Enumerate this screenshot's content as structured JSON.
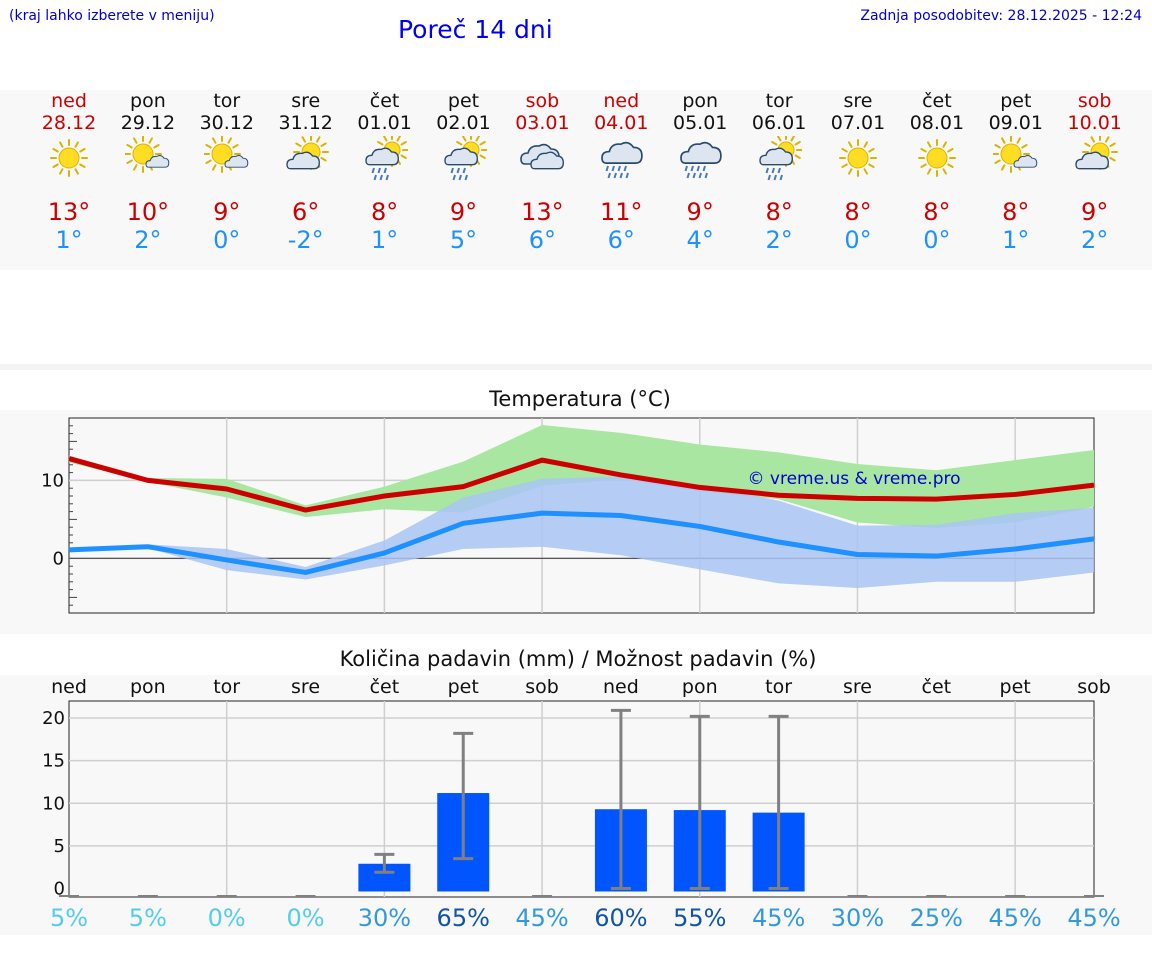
{
  "header": {
    "hint": "(kraj lahko izberete v meniju)",
    "title": "Poreč 14 dni",
    "updated": "Zadnja posodobitev: 28.12.2025 - 12:24"
  },
  "colors": {
    "tmax": "#cc0000",
    "tmin": "#1e90ff",
    "bar": "#0055ff",
    "green_band": "#a8e6a1",
    "blue_band": "#a9c4f5"
  },
  "forecast": [
    {
      "day": "ned",
      "date": "28.12",
      "icon": "sun-icon",
      "max": "13°",
      "min": "1°",
      "weekend": true
    },
    {
      "day": "pon",
      "date": "29.12",
      "icon": "sun-cloud-icon",
      "max": "10°",
      "min": "2°",
      "weekend": false
    },
    {
      "day": "tor",
      "date": "30.12",
      "icon": "sun-cloud-icon",
      "max": "9°",
      "min": "0°",
      "weekend": false
    },
    {
      "day": "sre",
      "date": "31.12",
      "icon": "cloud-sun-icon",
      "max": "6°",
      "min": "-2°",
      "weekend": false
    },
    {
      "day": "čet",
      "date": "01.01",
      "icon": "sun-cloud-rain-icon",
      "max": "8°",
      "min": "1°",
      "weekend": false
    },
    {
      "day": "pet",
      "date": "02.01",
      "icon": "sun-cloud-rain-icon",
      "max": "9°",
      "min": "5°",
      "weekend": false
    },
    {
      "day": "sob",
      "date": "03.01",
      "icon": "cloud-icon",
      "max": "13°",
      "min": "6°",
      "weekend": true
    },
    {
      "day": "ned",
      "date": "04.01",
      "icon": "cloud-rain-icon",
      "max": "11°",
      "min": "6°",
      "weekend": true
    },
    {
      "day": "pon",
      "date": "05.01",
      "icon": "cloud-rain-icon",
      "max": "9°",
      "min": "4°",
      "weekend": false
    },
    {
      "day": "tor",
      "date": "06.01",
      "icon": "sun-cloud-rain-icon",
      "max": "8°",
      "min": "2°",
      "weekend": false
    },
    {
      "day": "sre",
      "date": "07.01",
      "icon": "sun-icon",
      "max": "8°",
      "min": "0°",
      "weekend": false
    },
    {
      "day": "čet",
      "date": "08.01",
      "icon": "sun-icon",
      "max": "8°",
      "min": "0°",
      "weekend": false
    },
    {
      "day": "pet",
      "date": "09.01",
      "icon": "sun-cloud-icon",
      "max": "8°",
      "min": "1°",
      "weekend": false
    },
    {
      "day": "sob",
      "date": "10.01",
      "icon": "cloud-sun-icon",
      "max": "9°",
      "min": "2°",
      "weekend": true
    }
  ],
  "chart_data": [
    {
      "type": "line",
      "title": "Temperatura (°C)",
      "watermark": "© vreme.us & vreme.pro",
      "ylim": [
        -7,
        18
      ],
      "yticks": [
        0,
        10
      ],
      "x": [
        0,
        1,
        2,
        3,
        4,
        5,
        6,
        7,
        8,
        9,
        10,
        11,
        12,
        13
      ],
      "series": [
        {
          "name": "max",
          "values": [
            12.8,
            10.0,
            8.9,
            6.2,
            8.0,
            9.2,
            12.6,
            10.7,
            9.1,
            8.1,
            7.7,
            7.6,
            8.2,
            9.4
          ]
        },
        {
          "name": "min",
          "values": [
            1.1,
            1.5,
            -0.2,
            -1.8,
            0.7,
            4.5,
            5.8,
            5.5,
            4.1,
            2.1,
            0.5,
            0.3,
            1.2,
            2.5
          ]
        }
      ],
      "bands": [
        {
          "name": "max-range",
          "low": [
            12.3,
            9.8,
            7.8,
            5.3,
            6.3,
            5.9,
            9.3,
            10.2,
            8.6,
            7.6,
            4.6,
            3.9,
            4.6,
            6.6
          ],
          "high": [
            13.2,
            10.3,
            10.2,
            6.8,
            9.2,
            12.4,
            17.1,
            16.1,
            14.6,
            13.6,
            12.1,
            11.3,
            12.6,
            13.9
          ]
        },
        {
          "name": "min-range",
          "low": [
            1.0,
            1.3,
            -1.5,
            -2.7,
            -0.9,
            1.2,
            1.5,
            0.4,
            -1.4,
            -3.2,
            -3.8,
            -3.0,
            -3.0,
            -1.8
          ],
          "high": [
            1.3,
            1.8,
            1.2,
            -1.1,
            2.3,
            7.8,
            10.2,
            10.5,
            9.4,
            7.4,
            4.2,
            4.3,
            5.8,
            6.5
          ]
        }
      ]
    },
    {
      "type": "bar",
      "title": "Količina padavin (mm) / Možnost padavin (%)",
      "ylim": [
        -1,
        22
      ],
      "yticks": [
        0,
        5,
        10,
        15,
        20
      ],
      "categories": [
        "ned",
        "pon",
        "tor",
        "sre",
        "čet",
        "pet",
        "sob",
        "ned",
        "pon",
        "tor",
        "sre",
        "čet",
        "pet",
        "sob"
      ],
      "values": [
        0,
        0,
        0,
        0,
        2.9,
        11.2,
        0,
        9.3,
        9.2,
        8.9,
        0,
        0,
        0,
        0
      ],
      "error_low": [
        0,
        0,
        0,
        0,
        1.9,
        3.5,
        0,
        0,
        0,
        0,
        0,
        0,
        0,
        0
      ],
      "error_high": [
        0,
        0,
        0,
        0,
        4.0,
        18.2,
        0,
        20.9,
        20.2,
        20.2,
        0,
        0,
        0,
        0
      ],
      "probability": [
        "5%",
        "5%",
        "0%",
        "0%",
        "30%",
        "65%",
        "45%",
        "60%",
        "55%",
        "45%",
        "30%",
        "25%",
        "45%",
        "45%"
      ],
      "probability_colors": [
        "#55ccee",
        "#55ccee",
        "#55ccee",
        "#55ccee",
        "#3399dd",
        "#1155aa",
        "#3399dd",
        "#1155aa",
        "#1155aa",
        "#3399dd",
        "#3399dd",
        "#3399dd",
        "#3399dd",
        "#3399dd"
      ]
    }
  ]
}
